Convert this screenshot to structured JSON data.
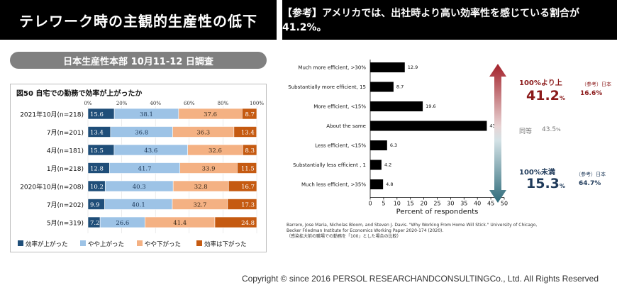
{
  "header": {
    "left_title": "テレワーク時の主観的生産性の低下",
    "right_title": "【参考】アメリカでは、出社時より高い効率性を感じている割合が41.2%。"
  },
  "survey_label": "日本生産性本部 10月11-12 日調査",
  "colors": {
    "up": "#1f4e79",
    "slightly_up": "#9dc3e6",
    "slightly_down": "#f4b183",
    "down": "#c55a11",
    "bar_black": "#000000",
    "red_text": "#8b1a1a",
    "blue_text": "#1f3a5a",
    "arrow_red": "#a3212a",
    "arrow_blue": "#2e6b7a",
    "header_bg": "#000000",
    "pill_bg": "#808080"
  },
  "chart_data": [
    {
      "type": "bar",
      "orientation": "horizontal",
      "stacked": true,
      "title": "図50 自宅での勤務で効率が上がったか",
      "categories": [
        "2021年10月(n=218)",
        "7月(n=201)",
        "4月(n=181)",
        "1月(n=218)",
        "2020年10月(n=208)",
        "7月(n=202)",
        "5月(n=319)"
      ],
      "xlim": [
        0,
        100
      ],
      "xticks": [
        "0%",
        "20%",
        "40%",
        "60%",
        "80%",
        "100%"
      ],
      "legend_position": "bottom",
      "series": [
        {
          "name": "効率が上がった",
          "values": [
            15.6,
            13.4,
            15.5,
            12.8,
            10.2,
            9.9,
            7.2
          ]
        },
        {
          "name": "やや上がった",
          "values": [
            38.1,
            36.8,
            43.6,
            41.7,
            40.3,
            40.1,
            26.6
          ]
        },
        {
          "name": "やや下がった",
          "values": [
            37.6,
            36.3,
            32.6,
            33.9,
            32.8,
            32.7,
            41.4
          ]
        },
        {
          "name": "効率は下がった",
          "values": [
            8.7,
            13.4,
            8.3,
            11.5,
            16.7,
            17.3,
            24.8
          ]
        }
      ]
    },
    {
      "type": "bar",
      "orientation": "horizontal",
      "categories": [
        "Much more efficient, >30%",
        "Substantially more efficient, 15",
        "More efficient, <15%",
        "About the same",
        "Less efficient, <15%",
        "Substantially less efficient , 1",
        "Much less efficient, >35%"
      ],
      "values": [
        12.9,
        8.7,
        19.6,
        43.5,
        6.3,
        4.2,
        4.8
      ],
      "xlabel": "Percent of respondents",
      "xlim": [
        0,
        50
      ],
      "xticks": [
        "0",
        "5",
        "10",
        "15",
        "20",
        "25",
        "30",
        "35",
        "40",
        "45",
        "50"
      ],
      "grid": false
    }
  ],
  "source_note": {
    "line1": "Barrero,  Jose Maria, Nicholas Bloom,  and Steven J. Davis. \"Why Working From Home Will Stick.\" University of Chicago,",
    "line2": "Becker Friedman  Institute for Economics Working Paper 2020-174 (2020).",
    "line3": "（感染拡大前の職場での勤務を「100」とした場合の比較）"
  },
  "summary": {
    "above_label": "100%より上",
    "above_value": "41.2",
    "above_unit": "%",
    "above_ref_label": "（参考）日本",
    "above_ref_value": "16.6%",
    "same_label": "同等",
    "same_value": "43.5",
    "same_unit": "%",
    "below_label": "100%未満",
    "below_value": "15.3",
    "below_unit": "%",
    "below_ref_label": "（参考）日本",
    "below_ref_value": "64.7%"
  },
  "copyright": "Copyright © since 2016  PERSOL  RESEARCHANDCONSULTINGCo., Ltd. All Rights Reserved"
}
